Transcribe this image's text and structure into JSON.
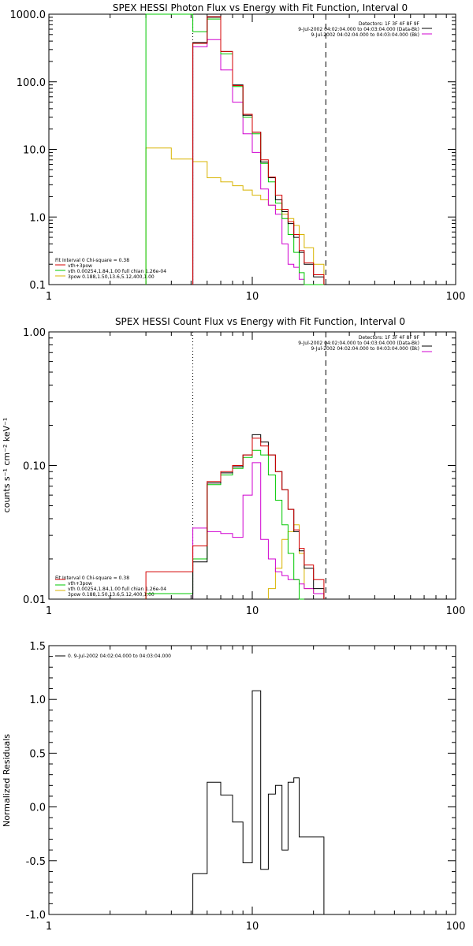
{
  "colors": {
    "data": "#000000",
    "total": "#d40000",
    "thermal": "#00c800",
    "powerlaw": "#d8b400",
    "background": "#d000d0",
    "axis": "#000000"
  },
  "chart_data": [
    {
      "type": "line",
      "title": "SPEX HESSI Photon Flux vs Energy with Fit Function, Interval 0",
      "xlabel": "",
      "ylabel": "",
      "xscale": "log",
      "yscale": "log",
      "xlim": [
        1,
        100
      ],
      "ylim": [
        0.1,
        1000
      ],
      "x_tick_labels": [
        "1",
        "10",
        "100"
      ],
      "y_tick_labels": [
        "0.1",
        "1.0",
        "10.0",
        "100.0",
        "1000.0"
      ],
      "vlines": [
        {
          "x": 5.1,
          "style": "dotted"
        },
        {
          "x": 23,
          "style": "dashed"
        }
      ],
      "legend_top": [
        "Detectors: 1F 3F 4F 8F 9F",
        "9-Jul-2002 04:02:04.000 to 04:03:04.000 (Data-Bk)",
        "9-Jul-2002 04:02:04.000 to 04:03:04.000 (Bk)"
      ],
      "legend_bottom": [
        "Fit Interval 0   Chi-square = 0.38",
        "vth+3pow",
        "vth 0.00254,1.84,1.00  full chian 1.26e-04",
        "3pow 0.188,1.50,13.6,5.12,400,1.00"
      ],
      "edges": [
        3.0,
        4.0,
        5.1,
        6.0,
        7.0,
        8.0,
        9.0,
        10.0,
        11.0,
        12.0,
        13.0,
        14.0,
        15.0,
        16.0,
        17.0,
        18.0,
        20.0,
        22.5
      ],
      "series": [
        {
          "name": "",
          "role": "data",
          "values": [
            null,
            null,
            380,
            900,
            280,
            90,
            32,
            18,
            6.5,
            3.8,
            1.8,
            1.2,
            0.8,
            0.5,
            0.3,
            0.2,
            0.13
          ]
        },
        {
          "name": "vth+3pow",
          "role": "total",
          "values": [
            null,
            null,
            370,
            920,
            280,
            88,
            33,
            18,
            7.0,
            3.9,
            2.1,
            1.3,
            0.85,
            0.55,
            0.32,
            0.21,
            0.14
          ]
        },
        {
          "name": "vth 0.00254,1.84,1.00  full chian 1.26e-04",
          "role": "thermal",
          "values": [
            1000,
            1000,
            550,
            850,
            260,
            85,
            30,
            17,
            6.2,
            3.3,
            1.6,
            0.95,
            0.55,
            0.3,
            0.15,
            0.1,
            0.1
          ]
        },
        {
          "name": "3pow 0.188,1.50,13.6,5.12,400,1.00",
          "role": "powerlaw",
          "values": [
            10.5,
            7.2,
            6.6,
            3.8,
            3.3,
            2.9,
            2.5,
            2.1,
            1.8,
            1.5,
            1.3,
            1.1,
            0.95,
            0.75,
            0.55,
            0.35,
            0.2
          ]
        },
        {
          "name": "",
          "role": "background",
          "values": [
            null,
            null,
            330,
            420,
            150,
            50,
            17,
            9,
            2.6,
            1.5,
            1.1,
            0.4,
            0.2,
            0.18,
            0.12,
            0.1,
            0.1
          ]
        }
      ]
    },
    {
      "type": "line",
      "title": "SPEX HESSI Count Flux vs Energy with Fit Function, Interval 0",
      "xlabel": "",
      "ylabel": "counts s⁻¹ cm⁻² keV⁻¹",
      "xscale": "log",
      "yscale": "log",
      "xlim": [
        1,
        100
      ],
      "ylim": [
        0.01,
        1.0
      ],
      "x_tick_labels": [
        "1",
        "10",
        "100"
      ],
      "y_tick_labels": [
        "0.01",
        "0.10",
        "1.00"
      ],
      "vlines": [
        {
          "x": 5.1,
          "style": "dotted"
        },
        {
          "x": 23,
          "style": "dashed"
        }
      ],
      "legend_top": [
        "Detectors: 1F 3F 4F 8F 9F",
        "9-Jul-2002 04:02:04.000 to 04:03:04.000 (Data-Bk)",
        "9-Jul-2002 04:02:04.000 to 04:03:04.000 (Bk)"
      ],
      "legend_bottom": [
        "Fit Interval 0   Chi-square = 0.38",
        "vth+3pow",
        "vth 0.00254,1.84,1.00  full chian 1.26e-04",
        "3pow 0.188,1.50,13.6,5.12,400,1.00"
      ],
      "edges": [
        3.0,
        4.0,
        5.1,
        6.0,
        7.0,
        8.0,
        9.0,
        10.0,
        11.0,
        12.0,
        13.0,
        14.0,
        15.0,
        16.0,
        17.0,
        18.0,
        20.0,
        22.5
      ],
      "series": [
        {
          "name": "",
          "role": "data",
          "values": [
            null,
            null,
            0.019,
            0.074,
            0.088,
            0.098,
            0.12,
            0.17,
            0.15,
            0.12,
            0.09,
            0.066,
            0.047,
            0.032,
            0.023,
            0.017,
            0.012
          ]
        },
        {
          "name": "vth+3pow",
          "role": "total",
          "values": [
            0.016,
            0.016,
            0.025,
            0.076,
            0.09,
            0.1,
            0.12,
            0.16,
            0.14,
            0.12,
            0.09,
            0.066,
            0.047,
            0.033,
            0.024,
            0.018,
            0.014
          ]
        },
        {
          "name": "vth 0.00254,1.84,1.00  full chian 1.26e-04",
          "role": "thermal",
          "values": [
            0.011,
            0.011,
            0.02,
            0.072,
            0.085,
            0.095,
            0.115,
            0.13,
            0.12,
            0.085,
            0.055,
            0.036,
            0.022,
            0.014,
            0.01,
            null,
            null
          ]
        },
        {
          "name": "3pow 0.188,1.50,13.6,5.12,400,1.00",
          "role": "powerlaw",
          "values": [
            null,
            null,
            null,
            null,
            null,
            null,
            null,
            null,
            null,
            0.012,
            0.017,
            0.028,
            0.032,
            0.036,
            0.022,
            0.012,
            0.011
          ]
        },
        {
          "name": "",
          "role": "background",
          "values": [
            null,
            null,
            0.034,
            0.032,
            0.031,
            0.029,
            0.06,
            0.105,
            0.028,
            0.02,
            0.016,
            0.015,
            0.014,
            0.014,
            0.013,
            0.012,
            0.011
          ]
        }
      ]
    },
    {
      "type": "line",
      "title": "",
      "xlabel": "",
      "ylabel": "Normalized Residuals",
      "xscale": "log",
      "yscale": "linear",
      "xlim": [
        1,
        100
      ],
      "ylim": [
        -1.0,
        1.5
      ],
      "x_tick_labels": [
        "1",
        "10",
        "100"
      ],
      "y_tick_labels": [
        "-1.0",
        "-0.5",
        "0.0",
        "0.5",
        "1.0",
        "1.5"
      ],
      "legend_top": [
        "0. 9-Jul-2002 04:02:04.000 to 04:03:04.000"
      ],
      "edges": [
        5.1,
        6.0,
        7.0,
        8.0,
        9.0,
        10.0,
        11.0,
        12.0,
        13.0,
        14.0,
        15.0,
        16.0,
        17.0,
        18.0,
        20.0,
        22.5
      ],
      "series": [
        {
          "name": "0. 9-Jul-2002 04:02:04.000 to 04:03:04.000",
          "role": "data",
          "values": [
            -0.62,
            0.23,
            0.11,
            -0.14,
            -0.52,
            1.08,
            -0.58,
            0.12,
            0.2,
            -0.4,
            0.23,
            0.27,
            -0.28,
            -0.28,
            -0.28
          ]
        }
      ]
    }
  ]
}
